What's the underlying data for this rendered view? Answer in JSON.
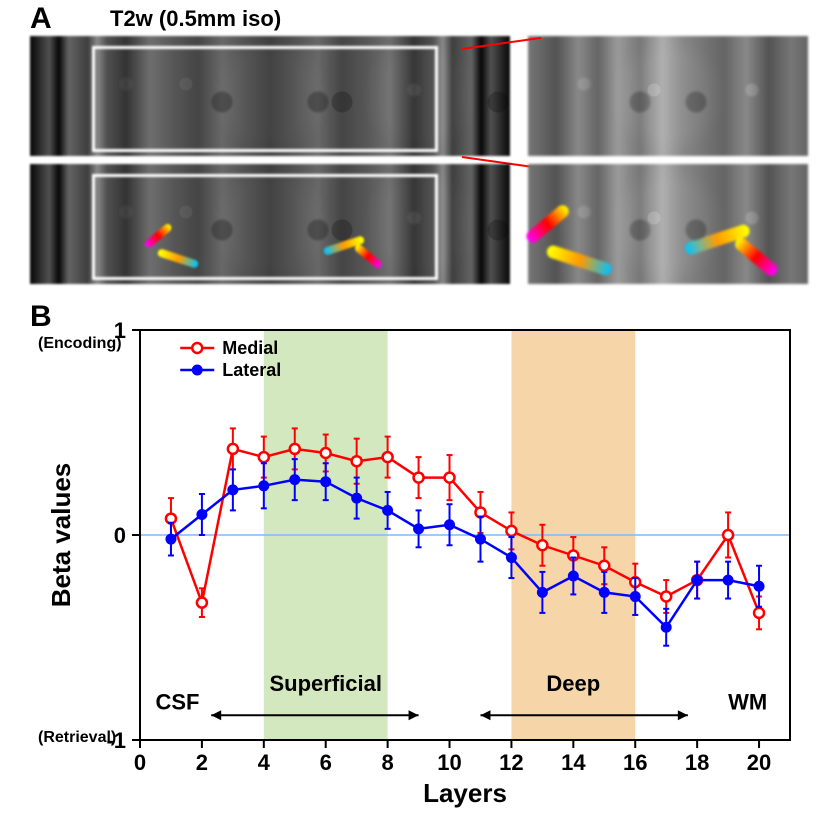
{
  "panelA": {
    "label": "A",
    "title": "T2w (0.5mm iso)"
  },
  "panelB": {
    "label": "B",
    "xlabel": "Layers",
    "ylabel": "Beta values",
    "y_top_label": "(Encoding)",
    "y_bottom_label": "(Retrieval)",
    "csf_label": "CSF",
    "wm_label": "WM",
    "superficial_label": "Superficial",
    "deep_label": "Deep",
    "legend": {
      "medial": "Medial",
      "lateral": "Lateral"
    },
    "xticks": [
      0,
      2,
      4,
      6,
      8,
      10,
      12,
      14,
      16,
      18,
      20
    ],
    "yticks": [
      -1,
      0,
      1
    ],
    "xlim": [
      0,
      21
    ],
    "ylim": [
      -1,
      1
    ],
    "superficial_band": [
      4,
      8
    ],
    "deep_band": [
      12,
      16
    ],
    "colors": {
      "medial": "#ff0000",
      "lateral": "#0000ff",
      "superficial_fill": "#d4e8c0",
      "deep_fill": "#f6d6a8",
      "axis": "#000000",
      "zero_line": "#7fb8ff",
      "background": "#ffffff"
    },
    "marker_size": 5,
    "line_width": 2.5,
    "error_cap": 6,
    "title_fontsize": 26,
    "tick_fontsize": 22,
    "series": {
      "medial": {
        "x": [
          1,
          2,
          3,
          4,
          5,
          6,
          7,
          8,
          9,
          10,
          11,
          12,
          13,
          14,
          15,
          16,
          17,
          18,
          19,
          20
        ],
        "y": [
          0.08,
          -0.33,
          0.42,
          0.38,
          0.42,
          0.4,
          0.36,
          0.38,
          0.28,
          0.28,
          0.11,
          0.02,
          -0.05,
          -0.1,
          -0.15,
          -0.23,
          -0.3,
          -0.22,
          0.0,
          -0.38
        ],
        "err": [
          0.1,
          0.07,
          0.1,
          0.1,
          0.1,
          0.09,
          0.11,
          0.1,
          0.1,
          0.11,
          0.1,
          0.09,
          0.1,
          0.09,
          0.09,
          0.09,
          0.08,
          0.09,
          0.11,
          0.08
        ]
      },
      "lateral": {
        "x": [
          1,
          2,
          3,
          4,
          5,
          6,
          7,
          8,
          9,
          10,
          11,
          12,
          13,
          14,
          15,
          16,
          17,
          18,
          19,
          20
        ],
        "y": [
          -0.02,
          0.1,
          0.22,
          0.24,
          0.27,
          0.26,
          0.18,
          0.12,
          0.03,
          0.05,
          -0.02,
          -0.11,
          -0.28,
          -0.2,
          -0.28,
          -0.3,
          -0.45,
          -0.22,
          -0.22,
          -0.25
        ],
        "err": [
          0.08,
          0.1,
          0.1,
          0.11,
          0.1,
          0.09,
          0.1,
          0.09,
          0.09,
          0.1,
          0.11,
          0.1,
          0.1,
          0.09,
          0.1,
          0.09,
          0.09,
          0.09,
          0.09,
          0.1
        ]
      }
    }
  }
}
